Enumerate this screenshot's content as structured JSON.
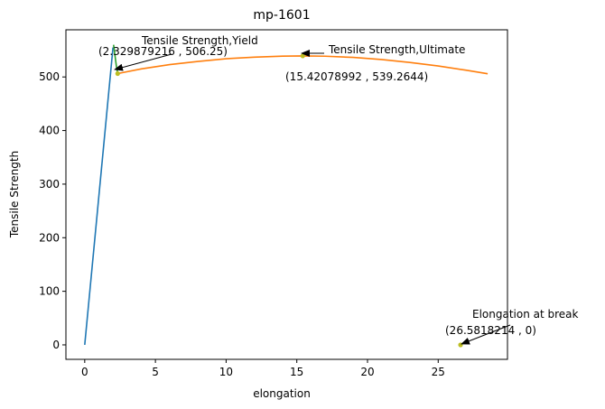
{
  "chart_data": {
    "type": "line",
    "title": "mp-1601",
    "xlabel": "elongation",
    "ylabel": "Tensile Strength",
    "xlim": [
      -1.33,
      29.9
    ],
    "ylim": [
      -27,
      588
    ],
    "xticks": [
      0,
      5,
      10,
      15,
      20,
      25
    ],
    "yticks": [
      0,
      100,
      200,
      300,
      400,
      500
    ],
    "grid": false,
    "legend": "none",
    "series": [
      {
        "color": "#1f77b4",
        "x": [
          0,
          2.0
        ],
        "y": [
          0,
          555
        ]
      },
      {
        "color": "#2ca02c",
        "x": [
          2.04,
          2.14,
          2.24,
          2.33
        ],
        "y": [
          560,
          540,
          520,
          506.25
        ]
      },
      {
        "color": "#ff7f0e",
        "x": [
          2.33,
          4,
          6,
          8,
          10,
          12,
          14,
          15.42,
          17,
          19,
          21,
          23,
          25,
          27,
          28.5
        ],
        "y": [
          506.25,
          515,
          523,
          529,
          534,
          537,
          538.8,
          539.26,
          538.7,
          536.5,
          532.5,
          527,
          520.5,
          512.5,
          506
        ]
      }
    ],
    "points": [
      {
        "x": 2.329879216,
        "y": 506.25,
        "color": "#bcbd22"
      },
      {
        "x": 15.42078992,
        "y": 539.2644,
        "color": "#bcbd22"
      },
      {
        "x": 26.5818214,
        "y": 0,
        "color": "#bcbd22"
      }
    ],
    "annotations": [
      {
        "text": "Tensile Strength,Yield",
        "coord_text": "(2.329879216 , 506.25)",
        "x": 2.329879216,
        "y": 506.25
      },
      {
        "text": "Tensile Strength,Ultimate",
        "coord_text": "(15.42078992 , 539.2644)",
        "x": 15.42078992,
        "y": 539.2644
      },
      {
        "text": "Elongation at break",
        "coord_text": "(26.5818214 , 0)",
        "x": 26.5818214,
        "y": 0
      }
    ]
  }
}
